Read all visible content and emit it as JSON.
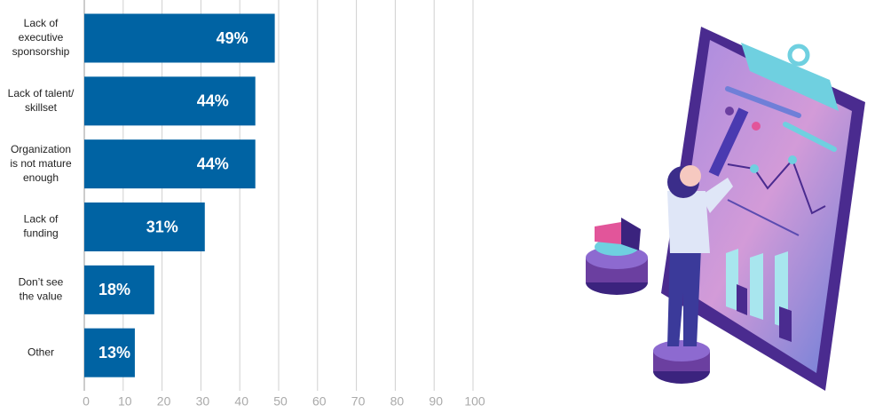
{
  "chart_data": {
    "type": "bar",
    "orientation": "horizontal",
    "categories": [
      [
        "Lack of",
        "executive",
        "sponsorship"
      ],
      [
        "Lack of talent/",
        "skillset"
      ],
      [
        "Organization",
        "is not mature",
        "enough"
      ],
      [
        "Lack of",
        "funding"
      ],
      [
        "Don’t see",
        "the value"
      ],
      [
        "Other"
      ]
    ],
    "values": [
      49,
      44,
      44,
      31,
      18,
      13
    ],
    "value_labels": [
      "49%",
      "44%",
      "44%",
      "31%",
      "18%",
      "13%"
    ],
    "color": "#0063a3",
    "xlim": [
      0,
      100
    ],
    "xticks": [
      0,
      10,
      20,
      30,
      40,
      50,
      60,
      70,
      80,
      90,
      100
    ],
    "grid": true
  }
}
